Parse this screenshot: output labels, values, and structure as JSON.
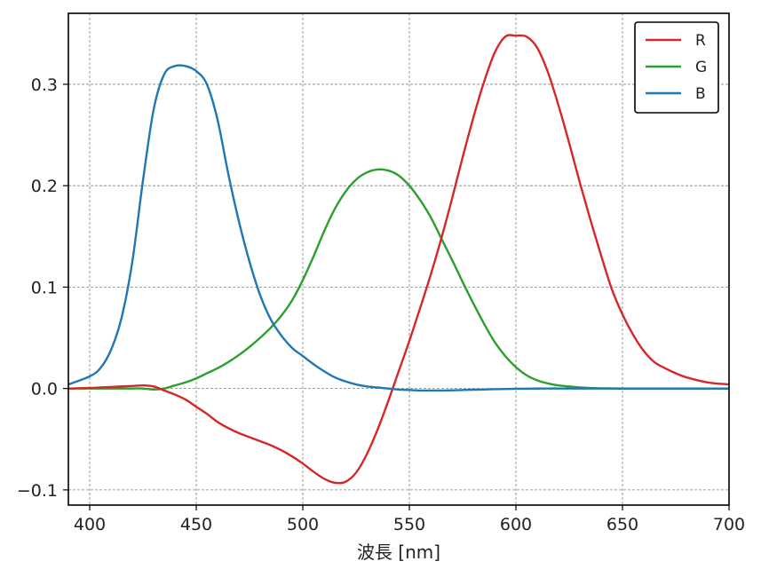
{
  "chart_data": {
    "type": "line",
    "title": "",
    "xlabel": "波長 [nm]",
    "ylabel": "",
    "xlim": [
      390,
      700
    ],
    "ylim": [
      -0.115,
      0.37
    ],
    "xticks": [
      400,
      450,
      500,
      550,
      600,
      650,
      700
    ],
    "xtick_labels": [
      "400",
      "450",
      "500",
      "550",
      "600",
      "650",
      "700"
    ],
    "yticks": [
      -0.1,
      0.0,
      0.1,
      0.2,
      0.3
    ],
    "ytick_labels": [
      "−0.1",
      "0.0",
      "0.1",
      "0.2",
      "0.3"
    ],
    "grid": true,
    "legend_position": "top-right",
    "x": [
      390,
      400,
      405,
      410,
      415,
      420,
      425,
      430,
      435,
      440,
      445,
      450,
      455,
      460,
      465,
      470,
      475,
      480,
      485,
      490,
      495,
      500,
      505,
      510,
      515,
      520,
      525,
      530,
      535,
      540,
      545,
      550,
      555,
      560,
      565,
      570,
      575,
      580,
      585,
      590,
      595,
      600,
      605,
      610,
      615,
      620,
      625,
      630,
      635,
      640,
      645,
      650,
      655,
      660,
      665,
      670,
      675,
      680,
      690,
      700
    ],
    "series": [
      {
        "name": "R",
        "color": "#d62728",
        "values": [
          0.0,
          0.0005,
          0.001,
          0.0015,
          0.002,
          0.0025,
          0.003,
          0.002,
          -0.002,
          -0.006,
          -0.011,
          -0.018,
          -0.025,
          -0.033,
          -0.039,
          -0.044,
          -0.048,
          -0.052,
          -0.056,
          -0.061,
          -0.067,
          -0.074,
          -0.082,
          -0.089,
          -0.093,
          -0.092,
          -0.083,
          -0.065,
          -0.041,
          -0.013,
          0.017,
          0.047,
          0.079,
          0.112,
          0.148,
          0.187,
          0.228,
          0.267,
          0.302,
          0.331,
          0.347,
          0.348,
          0.347,
          0.336,
          0.312,
          0.279,
          0.242,
          0.203,
          0.166,
          0.131,
          0.098,
          0.073,
          0.053,
          0.037,
          0.026,
          0.02,
          0.015,
          0.011,
          0.006,
          0.004
        ]
      },
      {
        "name": "G",
        "color": "#2ca02c",
        "values": [
          0.0,
          0.0,
          0.0,
          0.0,
          0.0,
          0.0,
          0.0,
          -0.001,
          0.0,
          0.003,
          0.006,
          0.01,
          0.015,
          0.02,
          0.026,
          0.033,
          0.041,
          0.05,
          0.06,
          0.072,
          0.087,
          0.107,
          0.13,
          0.155,
          0.177,
          0.194,
          0.206,
          0.213,
          0.216,
          0.215,
          0.21,
          0.2,
          0.186,
          0.169,
          0.148,
          0.127,
          0.105,
          0.084,
          0.064,
          0.046,
          0.032,
          0.021,
          0.013,
          0.008,
          0.005,
          0.003,
          0.002,
          0.001,
          0.0005,
          0.0002,
          0.0001,
          0.0,
          0.0,
          0.0,
          0.0,
          0.0,
          0.0,
          0.0,
          0.0,
          0.0
        ]
      },
      {
        "name": "B",
        "color": "#1f77b4",
        "values": [
          0.004,
          0.012,
          0.02,
          0.038,
          0.07,
          0.125,
          0.205,
          0.275,
          0.31,
          0.318,
          0.318,
          0.313,
          0.3,
          0.265,
          0.212,
          0.165,
          0.125,
          0.092,
          0.068,
          0.052,
          0.04,
          0.032,
          0.024,
          0.017,
          0.011,
          0.007,
          0.004,
          0.002,
          0.001,
          0.0,
          -0.001,
          -0.0015,
          -0.002,
          -0.002,
          -0.002,
          -0.0018,
          -0.0015,
          -0.0012,
          -0.001,
          -0.0007,
          -0.0005,
          -0.0003,
          -0.0002,
          -0.0001,
          0.0,
          0.0,
          0.0,
          0.0,
          0.0,
          0.0,
          0.0,
          0.0,
          0.0,
          0.0,
          0.0,
          0.0,
          0.0,
          0.0,
          0.0,
          0.0
        ]
      }
    ]
  }
}
